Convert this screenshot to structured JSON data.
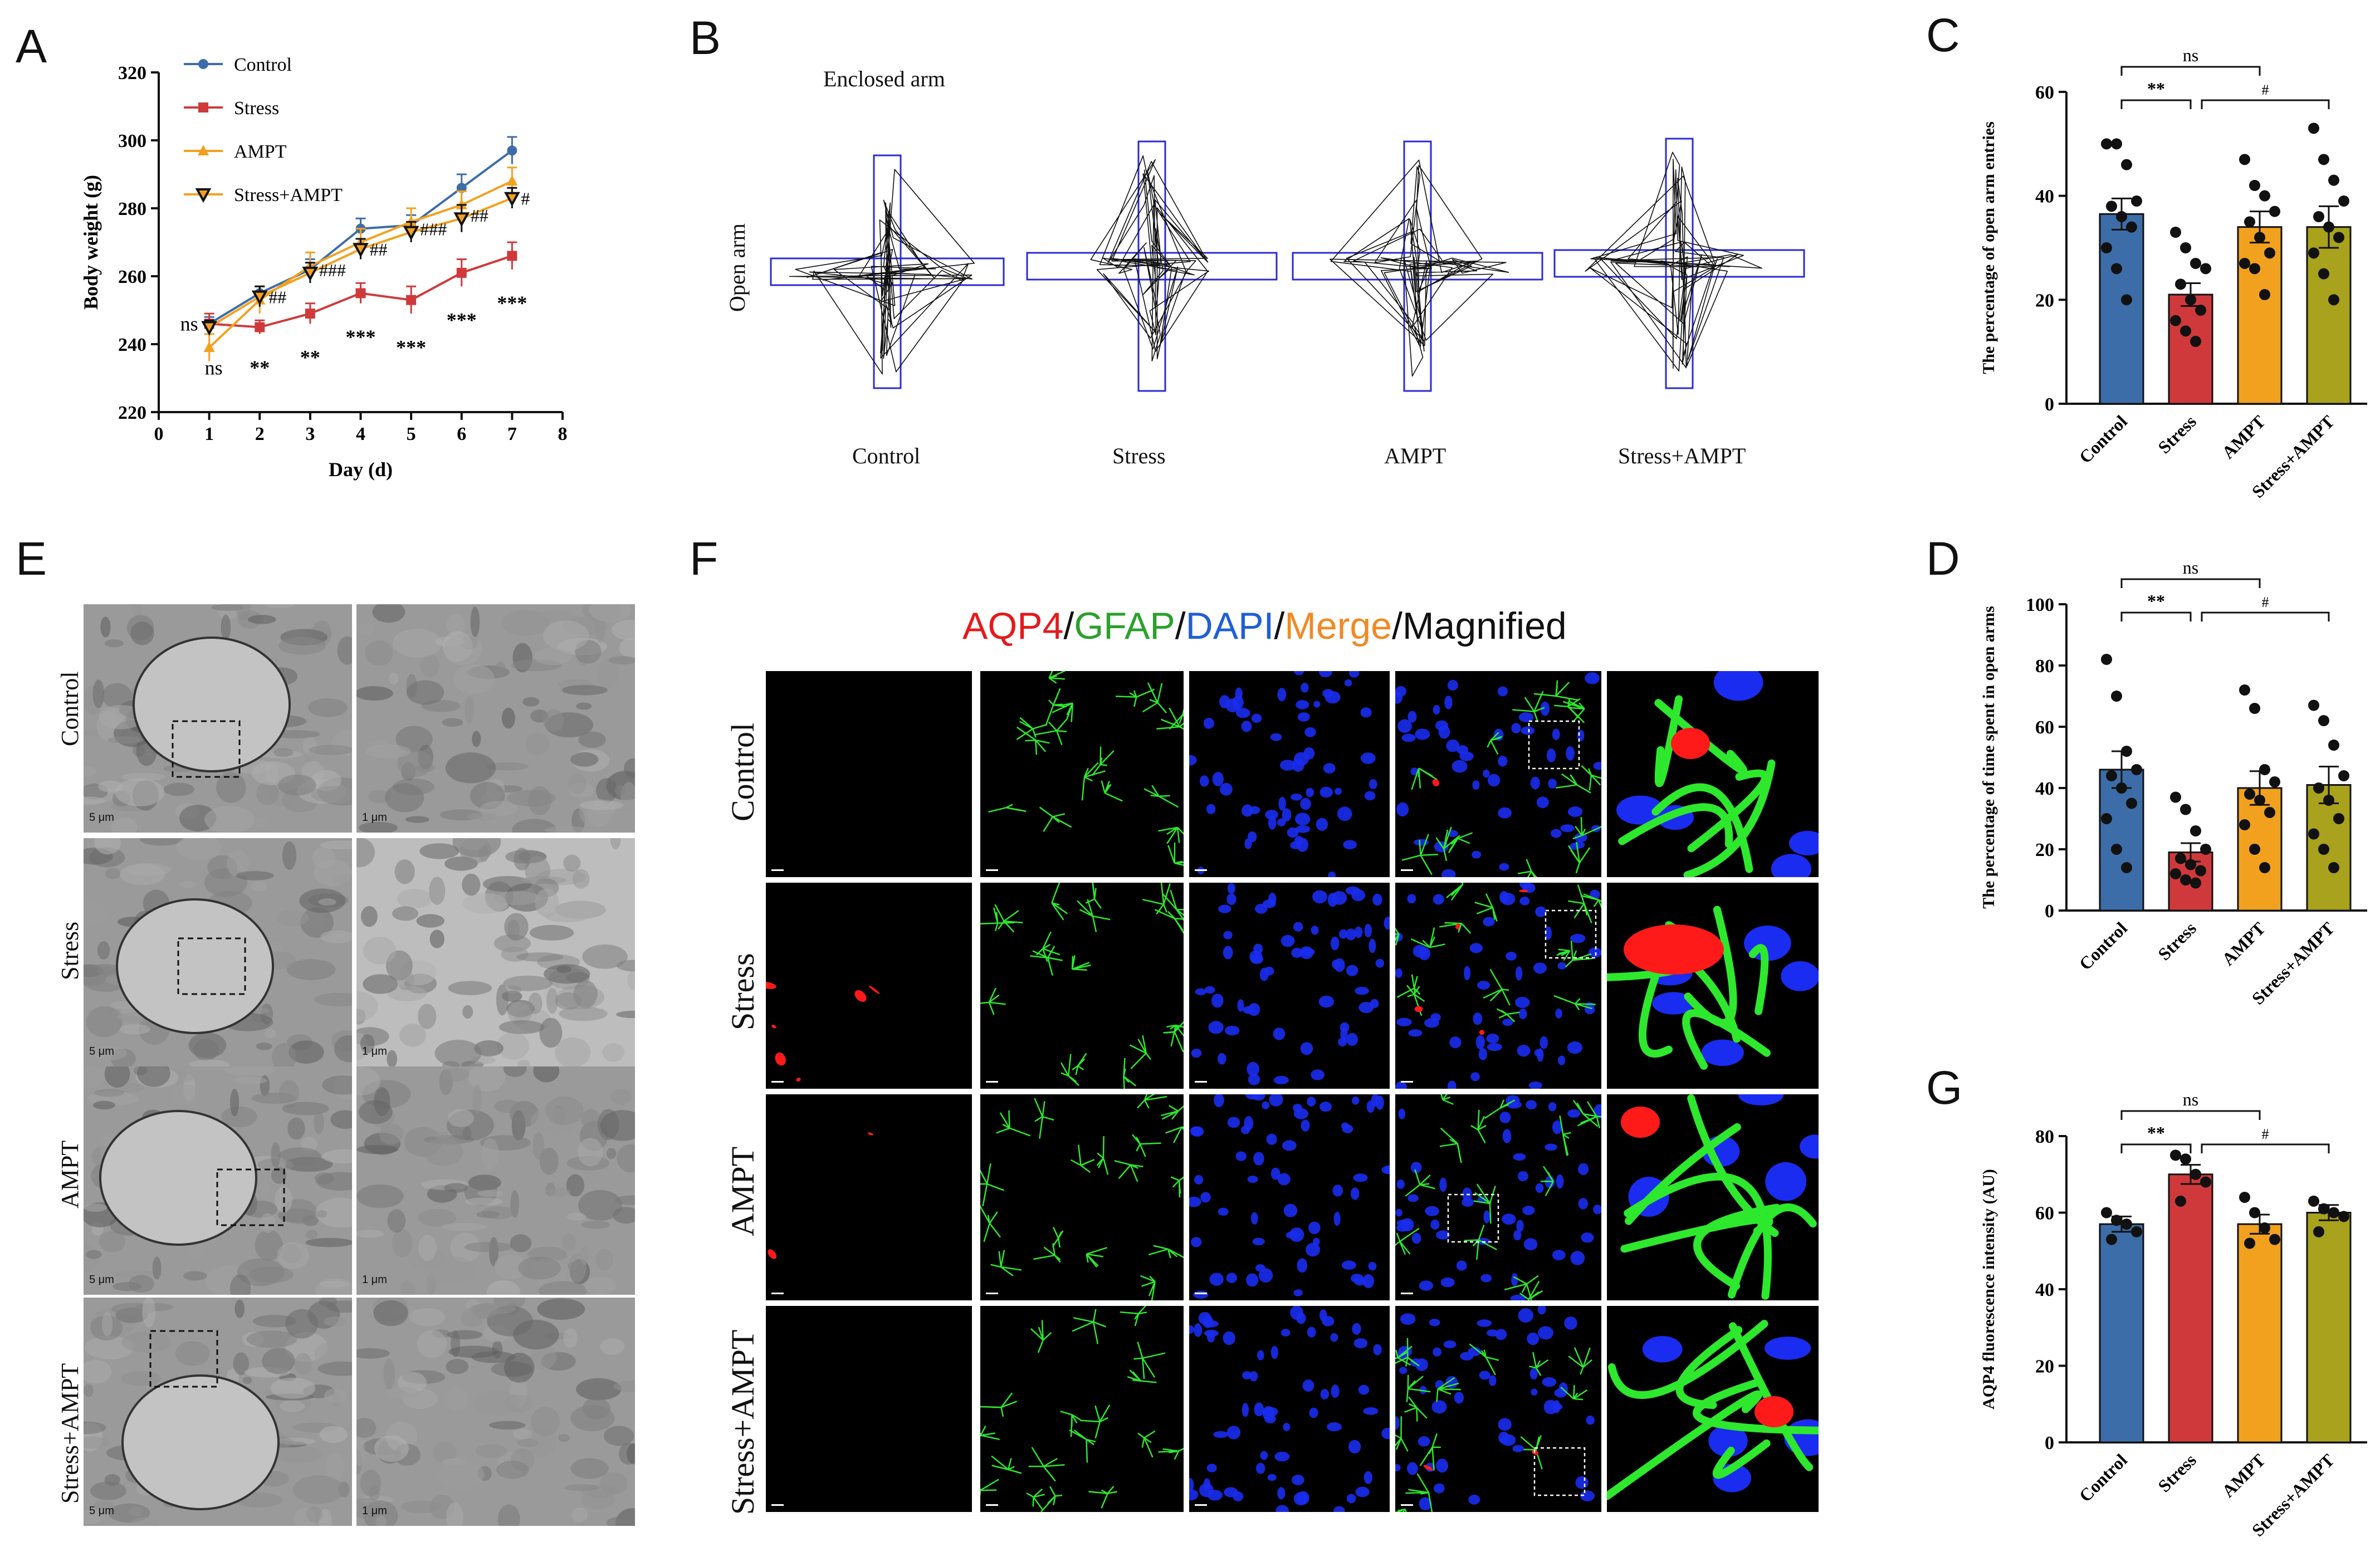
{
  "panels": {
    "A": "A",
    "B": "B",
    "C": "C",
    "D": "D",
    "E": "E",
    "F": "F",
    "G": "G"
  },
  "colors": {
    "control": "#3d6da8",
    "stress": "#d0393b",
    "ampt": "#f2a11f",
    "stress_ampt": "#a8a21c",
    "line_stress_ampt": "#111111"
  },
  "panelA": {
    "xlabel": "Day (d)",
    "ylabel": "Body weight (g)",
    "legend": [
      "Control",
      "Stress",
      "AMPT",
      "Stress+AMPT"
    ],
    "annotations": {
      "ns_top": "ns",
      "ns_bottom": "ns",
      "stars": [
        "**",
        "**",
        "***",
        "***",
        "***",
        "***"
      ],
      "hashes": [
        "##",
        "###",
        "##",
        "###",
        "##",
        "#"
      ]
    }
  },
  "panelB": {
    "enclosed_label": "Enclosed arm",
    "open_label": "Open arm",
    "groups": [
      "Control",
      "Stress",
      "AMPT",
      "Stress+AMPT"
    ]
  },
  "panelC": {
    "ylabel": "The percentage of open arm entries",
    "ns": "ns",
    "sig1": "**",
    "sig2": "#"
  },
  "panelD": {
    "ylabel": "The percentage of time spent in open arms",
    "ns": "ns",
    "sig1": "**",
    "sig2": "#"
  },
  "panelG": {
    "ylabel": "AQP4 fluorescence intensity (AU)",
    "ns": "ns",
    "sig1": "**",
    "sig2": "#"
  },
  "panelE": {
    "rows": [
      "Control",
      "Stress",
      "AMPT",
      "Stress+AMPT"
    ],
    "scale_left": "5 μm",
    "scale_right": "1 μm"
  },
  "panelF": {
    "title_parts": [
      "AQP4",
      "/",
      "GFAP",
      "/",
      "DAPI",
      "/",
      "Merge",
      "/",
      "Magnified"
    ],
    "rows": [
      "Control",
      "Stress",
      "AMPT",
      "Stress+AMPT"
    ]
  },
  "chart_data": [
    {
      "type": "line",
      "title": "",
      "xlabel": "Day (d)",
      "ylabel": "Body weight (g)",
      "xlim": [
        0,
        8
      ],
      "ylim": [
        220,
        320
      ],
      "x": [
        1,
        2,
        3,
        4,
        5,
        6,
        7
      ],
      "series": [
        {
          "name": "Control",
          "values": [
            246,
            255,
            262,
            274,
            275,
            286,
            297
          ]
        },
        {
          "name": "Stress",
          "values": [
            246,
            245,
            249,
            255,
            253,
            261,
            266
          ]
        },
        {
          "name": "AMPT",
          "values": [
            239,
            253,
            263,
            270,
            276,
            281,
            288
          ]
        },
        {
          "name": "Stress+AMPT",
          "values": [
            245,
            254,
            261,
            268,
            273,
            277,
            283
          ]
        }
      ]
    },
    {
      "type": "bar",
      "title": "",
      "ylabel": "The percentage of open arm entries",
      "ylim": [
        0,
        60
      ],
      "categories": [
        "Control",
        "Stress",
        "AMPT",
        "Stress+AMPT"
      ],
      "values": [
        36.5,
        21,
        34,
        34
      ],
      "errors": [
        3,
        2.2,
        3,
        4
      ],
      "points": [
        [
          50,
          50,
          46,
          39,
          38,
          36,
          34,
          30,
          26,
          20
        ],
        [
          33,
          30,
          27,
          26,
          23,
          20,
          18,
          16,
          14,
          12
        ],
        [
          47,
          42,
          40,
          37,
          35,
          32,
          29,
          27,
          26,
          21
        ],
        [
          53,
          47,
          43,
          39,
          36,
          34,
          32,
          29,
          25,
          20
        ]
      ]
    },
    {
      "type": "bar",
      "title": "",
      "ylabel": "The percentage of time spent in open arms",
      "ylim": [
        0,
        100
      ],
      "categories": [
        "Control",
        "Stress",
        "AMPT",
        "Stress+AMPT"
      ],
      "values": [
        46,
        19,
        40,
        41
      ],
      "errors": [
        6,
        3,
        5.5,
        6
      ],
      "points": [
        [
          82,
          70,
          52,
          46,
          44,
          40,
          35,
          30,
          20,
          14
        ],
        [
          37,
          33,
          26,
          20,
          17,
          15,
          13,
          12,
          10,
          9
        ],
        [
          72,
          66,
          46,
          42,
          38,
          36,
          32,
          28,
          20,
          14
        ],
        [
          67,
          62,
          54,
          44,
          40,
          36,
          30,
          25,
          20,
          14
        ]
      ]
    },
    {
      "type": "bar",
      "title": "",
      "ylabel": "AQP4 fluorescence intensity (AU)",
      "ylim": [
        0,
        80
      ],
      "categories": [
        "Control",
        "Stress",
        "AMPT",
        "Stress+AMPT"
      ],
      "values": [
        57,
        70,
        57,
        60
      ],
      "errors": [
        2,
        2.5,
        2.5,
        2
      ],
      "points": [
        [
          60,
          58,
          57,
          55,
          53
        ],
        [
          75,
          74,
          70,
          68,
          63
        ],
        [
          64,
          60,
          56,
          53,
          52
        ],
        [
          63,
          61,
          60,
          59,
          55
        ]
      ]
    }
  ]
}
